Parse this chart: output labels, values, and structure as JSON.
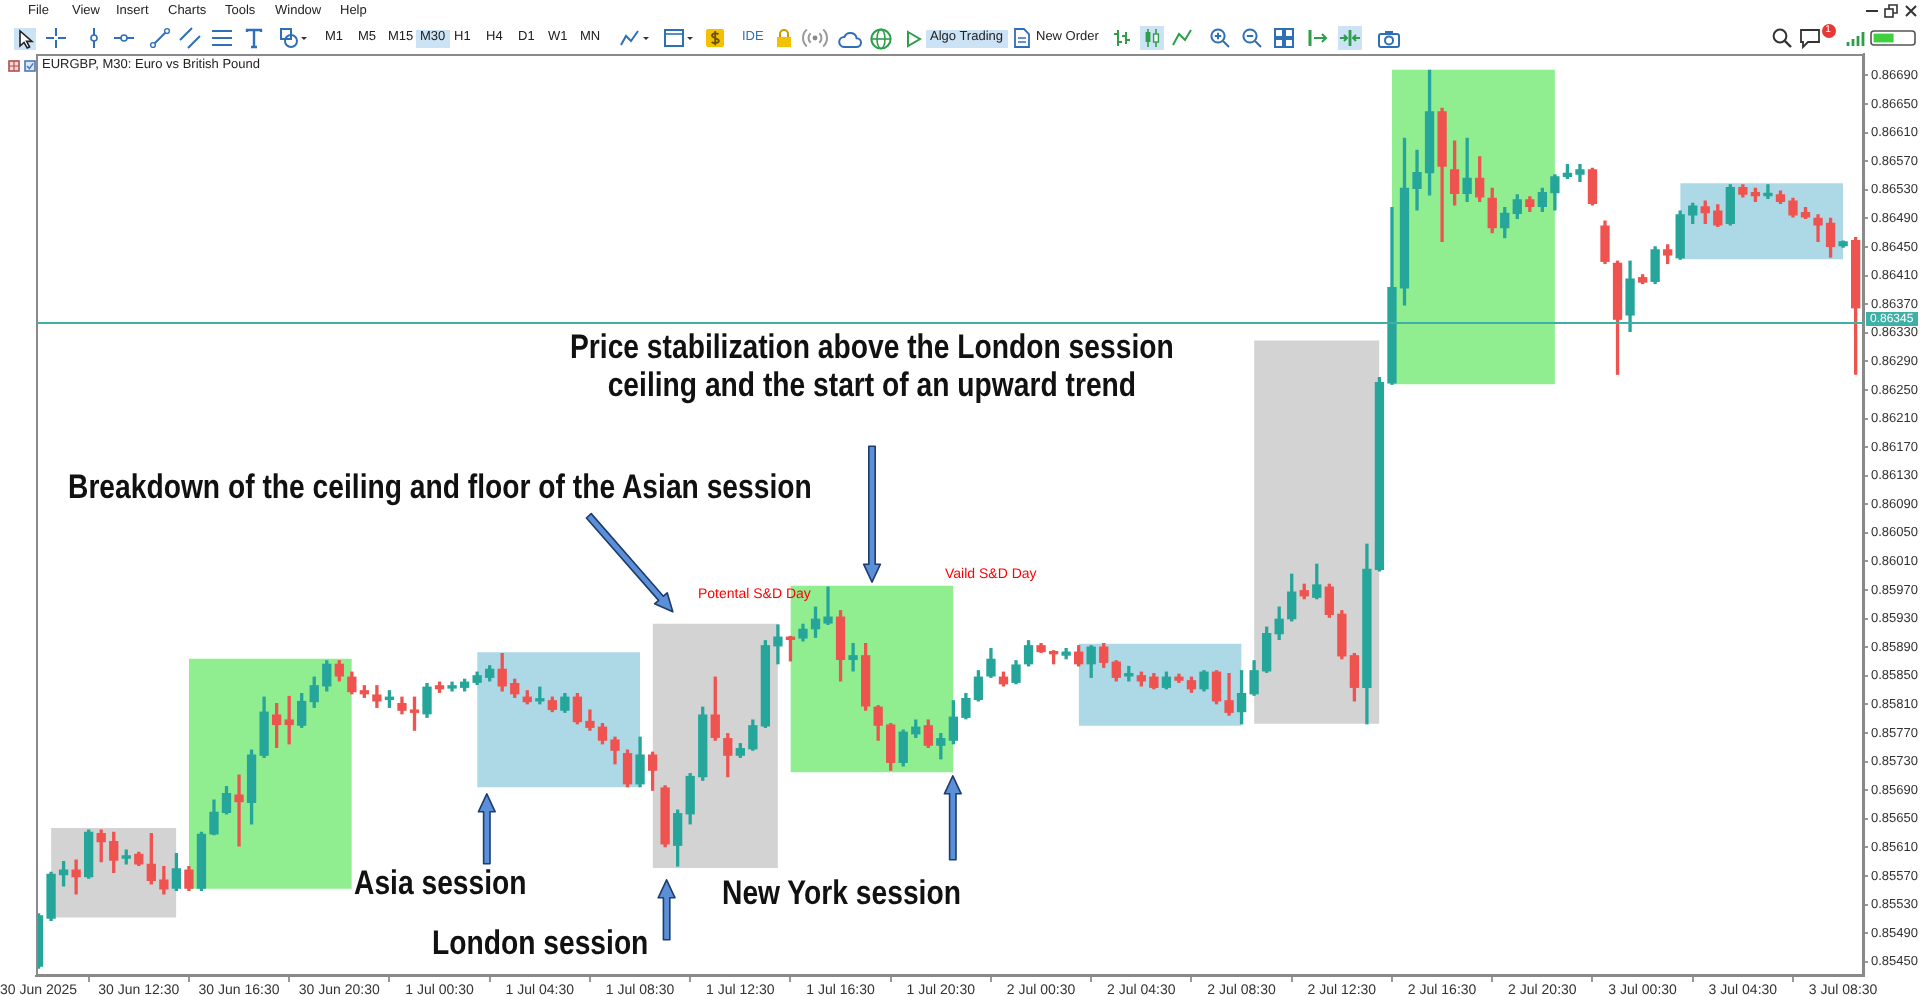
{
  "chart_data": {
    "type": "candlestick",
    "title": "EURGBP, M30: Euro vs British Pound",
    "x": [
      "2025-06-30T08:30",
      "2025-06-30T09:00",
      "2025-06-30T09:30",
      "2025-06-30T10:00",
      "2025-06-30T10:30",
      "2025-06-30T11:00",
      "2025-06-30T11:30",
      "2025-06-30T12:00",
      "2025-06-30T12:30",
      "2025-06-30T13:00",
      "2025-06-30T13:30",
      "2025-06-30T14:00",
      "2025-06-30T14:30",
      "2025-06-30T15:00",
      "2025-06-30T15:30",
      "2025-06-30T16:00",
      "2025-06-30T16:30",
      "2025-06-30T17:00",
      "2025-06-30T17:30",
      "2025-06-30T18:00",
      "2025-06-30T18:30",
      "2025-06-30T19:00",
      "2025-06-30T19:30",
      "2025-06-30T20:00",
      "2025-06-30T20:30",
      "2025-06-30T21:00",
      "2025-06-30T21:30",
      "2025-06-30T22:00",
      "2025-06-30T22:30",
      "2025-06-30T23:00",
      "2025-06-30T23:30",
      "2025-07-01T00:00",
      "2025-07-01T00:30",
      "2025-07-01T01:00",
      "2025-07-01T01:30",
      "2025-07-01T02:00",
      "2025-07-01T02:30",
      "2025-07-01T03:00",
      "2025-07-01T03:30",
      "2025-07-01T04:00",
      "2025-07-01T04:30",
      "2025-07-01T05:00",
      "2025-07-01T05:30",
      "2025-07-01T06:00",
      "2025-07-01T06:30",
      "2025-07-01T07:00",
      "2025-07-01T07:30",
      "2025-07-01T08:00",
      "2025-07-01T08:30",
      "2025-07-01T09:00",
      "2025-07-01T09:30",
      "2025-07-01T10:00",
      "2025-07-01T10:30",
      "2025-07-01T11:00",
      "2025-07-01T11:30",
      "2025-07-01T12:00",
      "2025-07-01T12:30",
      "2025-07-01T13:00",
      "2025-07-01T13:30",
      "2025-07-01T14:00",
      "2025-07-01T14:30",
      "2025-07-01T15:00",
      "2025-07-01T15:30",
      "2025-07-01T16:00",
      "2025-07-01T16:30",
      "2025-07-01T17:00",
      "2025-07-01T17:30",
      "2025-07-01T18:00",
      "2025-07-01T18:30",
      "2025-07-01T19:00",
      "2025-07-01T19:30",
      "2025-07-01T20:00",
      "2025-07-01T20:30",
      "2025-07-01T21:00",
      "2025-07-01T21:30",
      "2025-07-01T22:00",
      "2025-07-01T22:30",
      "2025-07-01T23:00",
      "2025-07-01T23:30",
      "2025-07-02T00:00",
      "2025-07-02T00:30",
      "2025-07-02T01:00",
      "2025-07-02T01:30",
      "2025-07-02T02:00",
      "2025-07-02T02:30",
      "2025-07-02T03:00",
      "2025-07-02T03:30",
      "2025-07-02T04:00",
      "2025-07-02T04:30",
      "2025-07-02T05:00",
      "2025-07-02T05:30",
      "2025-07-02T06:00",
      "2025-07-02T06:30",
      "2025-07-02T07:00",
      "2025-07-02T07:30",
      "2025-07-02T08:00",
      "2025-07-02T08:30",
      "2025-07-02T09:00",
      "2025-07-02T09:30",
      "2025-07-02T10:00",
      "2025-07-02T10:30",
      "2025-07-02T11:00",
      "2025-07-02T11:30",
      "2025-07-02T12:00",
      "2025-07-02T12:30",
      "2025-07-02T13:00",
      "2025-07-02T13:30",
      "2025-07-02T14:00",
      "2025-07-02T14:30",
      "2025-07-02T15:00",
      "2025-07-02T15:30",
      "2025-07-02T16:00",
      "2025-07-02T16:30",
      "2025-07-02T17:00",
      "2025-07-02T17:30",
      "2025-07-02T18:00",
      "2025-07-02T18:30",
      "2025-07-02T19:00",
      "2025-07-02T19:30",
      "2025-07-02T20:00",
      "2025-07-02T20:30",
      "2025-07-02T21:00",
      "2025-07-02T21:30",
      "2025-07-02T22:00",
      "2025-07-02T22:30",
      "2025-07-02T23:00",
      "2025-07-02T23:30",
      "2025-07-03T00:00",
      "2025-07-03T00:30",
      "2025-07-03T01:00",
      "2025-07-03T01:30",
      "2025-07-03T02:00",
      "2025-07-03T02:30",
      "2025-07-03T03:00",
      "2025-07-03T03:30",
      "2025-07-03T04:00",
      "2025-07-03T04:30",
      "2025-07-03T05:00",
      "2025-07-03T05:30",
      "2025-07-03T06:00",
      "2025-07-03T06:30",
      "2025-07-03T07:00",
      "2025-07-03T07:30",
      "2025-07-03T08:00",
      "2025-07-03T08:30",
      "2025-07-03T09:00"
    ],
    "ohlc": [
      [
        0.85444,
        0.85517,
        0.85441,
        0.85514
      ],
      [
        0.85511,
        0.85575,
        0.85508,
        0.85572
      ],
      [
        0.85572,
        0.8559,
        0.85556,
        0.85578
      ],
      [
        0.85578,
        0.85592,
        0.85545,
        0.85569
      ],
      [
        0.85569,
        0.85634,
        0.85567,
        0.85631
      ],
      [
        0.85629,
        0.85634,
        0.8559,
        0.85618
      ],
      [
        0.85618,
        0.85631,
        0.85575,
        0.85592
      ],
      [
        0.85595,
        0.85606,
        0.85587,
        0.85598
      ],
      [
        0.856,
        0.85603,
        0.85585,
        0.85587
      ],
      [
        0.85586,
        0.85629,
        0.85559,
        0.85564
      ],
      [
        0.85564,
        0.85583,
        0.85545,
        0.85552
      ],
      [
        0.85553,
        0.85601,
        0.8555,
        0.8558
      ],
      [
        0.85578,
        0.85583,
        0.8555,
        0.85553
      ],
      [
        0.85553,
        0.85631,
        0.8555,
        0.85628
      ],
      [
        0.85629,
        0.85676,
        0.85628,
        0.85659
      ],
      [
        0.85659,
        0.85695,
        0.85657,
        0.85685
      ],
      [
        0.85683,
        0.85711,
        0.85612,
        0.85674
      ],
      [
        0.85673,
        0.85746,
        0.85643,
        0.85739
      ],
      [
        0.85739,
        0.8582,
        0.85736,
        0.85799
      ],
      [
        0.85795,
        0.85811,
        0.8575,
        0.85782
      ],
      [
        0.85788,
        0.85821,
        0.85755,
        0.85782
      ],
      [
        0.85781,
        0.85825,
        0.85778,
        0.85814
      ],
      [
        0.85814,
        0.85848,
        0.85806,
        0.85836
      ],
      [
        0.85836,
        0.85871,
        0.85829,
        0.85866
      ],
      [
        0.85866,
        0.85871,
        0.85843,
        0.8585
      ],
      [
        0.85848,
        0.85855,
        0.85825,
        0.85828
      ],
      [
        0.85829,
        0.85836,
        0.8582,
        0.85825
      ],
      [
        0.85823,
        0.85836,
        0.85806,
        0.85815
      ],
      [
        0.85817,
        0.85829,
        0.85806,
        0.8582
      ],
      [
        0.85811,
        0.8582,
        0.85797,
        0.85802
      ],
      [
        0.85802,
        0.8582,
        0.85774,
        0.85799
      ],
      [
        0.85797,
        0.85839,
        0.85792,
        0.85834
      ],
      [
        0.85836,
        0.85841,
        0.85827,
        0.85832
      ],
      [
        0.85833,
        0.85841,
        0.85829,
        0.85836
      ],
      [
        0.85834,
        0.85845,
        0.85829,
        0.85841
      ],
      [
        0.85841,
        0.85855,
        0.85838,
        0.8585
      ],
      [
        0.85848,
        0.85864,
        0.85843,
        0.85859
      ],
      [
        0.85859,
        0.85881,
        0.85829,
        0.85836
      ],
      [
        0.85839,
        0.85845,
        0.8582,
        0.85825
      ],
      [
        0.8582,
        0.85829,
        0.85811,
        0.85814
      ],
      [
        0.85815,
        0.85834,
        0.85811,
        0.85817
      ],
      [
        0.85815,
        0.8582,
        0.858,
        0.85803
      ],
      [
        0.85802,
        0.85825,
        0.85799,
        0.8582
      ],
      [
        0.8582,
        0.85825,
        0.85783,
        0.85786
      ],
      [
        0.85786,
        0.85802,
        0.85774,
        0.85778
      ],
      [
        0.85778,
        0.85783,
        0.85755,
        0.8576
      ],
      [
        0.8576,
        0.85764,
        0.85727,
        0.85746
      ],
      [
        0.85741,
        0.85746,
        0.85695,
        0.85699
      ],
      [
        0.85699,
        0.85764,
        0.85695,
        0.85739
      ],
      [
        0.85739,
        0.85743,
        0.8569,
        0.85718
      ],
      [
        0.85693,
        0.85696,
        0.85611,
        0.85615
      ],
      [
        0.85613,
        0.85662,
        0.85584,
        0.85657
      ],
      [
        0.85657,
        0.85713,
        0.85643,
        0.85709
      ],
      [
        0.85709,
        0.85806,
        0.85704,
        0.85795
      ],
      [
        0.85795,
        0.85848,
        0.8576,
        0.85764
      ],
      [
        0.85762,
        0.85769,
        0.85709,
        0.85739
      ],
      [
        0.85739,
        0.85755,
        0.85736,
        0.85748
      ],
      [
        0.85748,
        0.85788,
        0.85746,
        0.8578
      ],
      [
        0.8578,
        0.85899,
        0.85778,
        0.85892
      ],
      [
        0.85892,
        0.85921,
        0.85867,
        0.85904
      ],
      [
        0.85904,
        0.85905,
        0.85871,
        0.85901
      ],
      [
        0.85903,
        0.85922,
        0.85899,
        0.85915
      ],
      [
        0.85916,
        0.85946,
        0.85904,
        0.85929
      ],
      [
        0.85924,
        0.85974,
        0.85922,
        0.85932
      ],
      [
        0.85932,
        0.85941,
        0.85843,
        0.85873
      ],
      [
        0.85873,
        0.85895,
        0.85857,
        0.85878
      ],
      [
        0.85878,
        0.85895,
        0.85802,
        0.85808
      ],
      [
        0.85806,
        0.85808,
        0.8576,
        0.85781
      ],
      [
        0.85781,
        0.85783,
        0.85718,
        0.85729
      ],
      [
        0.85729,
        0.85774,
        0.85724,
        0.85771
      ],
      [
        0.85769,
        0.85788,
        0.85764,
        0.85778
      ],
      [
        0.8578,
        0.85788,
        0.8575,
        0.85753
      ],
      [
        0.85753,
        0.85769,
        0.85734,
        0.85762
      ],
      [
        0.8576,
        0.85815,
        0.85755,
        0.85792
      ],
      [
        0.85792,
        0.85825,
        0.8579,
        0.85818
      ],
      [
        0.85817,
        0.85857,
        0.85815,
        0.85848
      ],
      [
        0.8585,
        0.85888,
        0.85848,
        0.85873
      ],
      [
        0.85848,
        0.85855,
        0.85836,
        0.85839
      ],
      [
        0.85841,
        0.85871,
        0.85839,
        0.85865
      ],
      [
        0.85867,
        0.85899,
        0.85864,
        0.85892
      ],
      [
        0.85892,
        0.85895,
        0.85883,
        0.85884
      ],
      [
        0.85883,
        0.85885,
        0.85867,
        0.85881
      ],
      [
        0.85879,
        0.85888,
        0.85874,
        0.85883
      ],
      [
        0.85883,
        0.85892,
        0.85864,
        0.85867
      ],
      [
        0.85867,
        0.85892,
        0.85848,
        0.8589
      ],
      [
        0.8589,
        0.85895,
        0.85862,
        0.85869
      ],
      [
        0.85869,
        0.85871,
        0.85843,
        0.85848
      ],
      [
        0.8585,
        0.85863,
        0.85843,
        0.85853
      ],
      [
        0.8585,
        0.85855,
        0.85836,
        0.85843
      ],
      [
        0.85848,
        0.85853,
        0.85832,
        0.85834
      ],
      [
        0.85834,
        0.85855,
        0.85832,
        0.85848
      ],
      [
        0.85848,
        0.85852,
        0.85841,
        0.85844
      ],
      [
        0.85843,
        0.85848,
        0.85827,
        0.85832
      ],
      [
        0.85832,
        0.85857,
        0.85829,
        0.85855
      ],
      [
        0.85855,
        0.85857,
        0.85811,
        0.85815
      ],
      [
        0.85815,
        0.85853,
        0.85795,
        0.85799
      ],
      [
        0.858,
        0.85857,
        0.85783,
        0.85825
      ],
      [
        0.85825,
        0.85871,
        0.85823,
        0.85857
      ],
      [
        0.85857,
        0.85918,
        0.85855,
        0.85909
      ],
      [
        0.85909,
        0.85946,
        0.85901,
        0.85929
      ],
      [
        0.8593,
        0.85992,
        0.85927,
        0.85967
      ],
      [
        0.85969,
        0.85978,
        0.85958,
        0.85962
      ],
      [
        0.8596,
        0.86006,
        0.85958,
        0.85977
      ],
      [
        0.85974,
        0.85978,
        0.85932,
        0.85936
      ],
      [
        0.85936,
        0.85941,
        0.85874,
        0.85878
      ],
      [
        0.85878,
        0.85881,
        0.85815,
        0.85834
      ],
      [
        0.85834,
        0.86034,
        0.85783,
        0.85999
      ],
      [
        0.85999,
        0.86267,
        0.85997,
        0.8626
      ],
      [
        0.8626,
        0.86505,
        0.86258,
        0.86393
      ],
      [
        0.86393,
        0.86602,
        0.86369,
        0.86532
      ],
      [
        0.86532,
        0.86585,
        0.86502,
        0.86554
      ],
      [
        0.86554,
        0.86697,
        0.86523,
        0.86639
      ],
      [
        0.86639,
        0.86644,
        0.86458,
        0.86563
      ],
      [
        0.86558,
        0.86598,
        0.86509,
        0.86525
      ],
      [
        0.86525,
        0.86602,
        0.86514,
        0.86546
      ],
      [
        0.86546,
        0.86576,
        0.86514,
        0.8652
      ],
      [
        0.86518,
        0.86532,
        0.8647,
        0.86477
      ],
      [
        0.86477,
        0.86505,
        0.86463,
        0.86497
      ],
      [
        0.86497,
        0.86523,
        0.8649,
        0.86516
      ],
      [
        0.86516,
        0.8652,
        0.865,
        0.86507
      ],
      [
        0.86507,
        0.86532,
        0.865,
        0.86526
      ],
      [
        0.86526,
        0.86551,
        0.86502,
        0.86548
      ],
      [
        0.86549,
        0.86565,
        0.86546,
        0.86553
      ],
      [
        0.86552,
        0.86565,
        0.86542,
        0.86558
      ],
      [
        0.86558,
        0.8656,
        0.86509,
        0.86511
      ],
      [
        0.86479,
        0.86486,
        0.86427,
        0.8643
      ],
      [
        0.86427,
        0.8643,
        0.86272,
        0.86349
      ],
      [
        0.86355,
        0.8643,
        0.86332,
        0.86405
      ],
      [
        0.86407,
        0.86411,
        0.86399,
        0.86401
      ],
      [
        0.86402,
        0.8645,
        0.86399,
        0.86446
      ],
      [
        0.86446,
        0.86453,
        0.86427,
        0.86439
      ],
      [
        0.86435,
        0.865,
        0.86433,
        0.86495
      ],
      [
        0.86495,
        0.86511,
        0.86483,
        0.86507
      ],
      [
        0.86506,
        0.86514,
        0.86483,
        0.86498
      ],
      [
        0.865,
        0.86509,
        0.86479,
        0.86481
      ],
      [
        0.86483,
        0.86537,
        0.86481,
        0.86533
      ],
      [
        0.86533,
        0.86537,
        0.8652,
        0.86524
      ],
      [
        0.86526,
        0.86532,
        0.86514,
        0.86522
      ],
      [
        0.86522,
        0.86537,
        0.86518,
        0.86524
      ],
      [
        0.86523,
        0.86528,
        0.86511,
        0.86514
      ],
      [
        0.86514,
        0.86518,
        0.86492,
        0.86495
      ],
      [
        0.86498,
        0.86505,
        0.8649,
        0.86492
      ],
      [
        0.8649,
        0.86495,
        0.86458,
        0.86481
      ],
      [
        0.86483,
        0.8649,
        0.86436,
        0.86451
      ],
      [
        0.86452,
        0.86458,
        0.8645,
        0.86457
      ],
      [
        0.86459,
        0.86463,
        0.86272,
        0.86365
      ]
    ],
    "colors": [
      "#26a69a",
      "#26a69a",
      "#26a69a",
      "#ef5350",
      "#26a69a",
      "#ef5350",
      "#ef5350",
      "#26a69a",
      "#ef5350",
      "#ef5350",
      "#ef5350",
      "#26a69a",
      "#ef5350",
      "#26a69a",
      "#26a69a",
      "#26a69a",
      "#ef5350",
      "#26a69a",
      "#26a69a",
      "#ef5350",
      "#ef5350",
      "#26a69a",
      "#26a69a",
      "#26a69a",
      "#ef5350",
      "#ef5350",
      "#ef5350",
      "#ef5350",
      "#26a69a",
      "#ef5350",
      "#ef5350",
      "#26a69a",
      "#ef5350",
      "#26a69a",
      "#26a69a",
      "#26a69a",
      "#26a69a",
      "#ef5350",
      "#ef5350",
      "#ef5350",
      "#26a69a",
      "#ef5350",
      "#26a69a",
      "#ef5350",
      "#ef5350",
      "#ef5350",
      "#ef5350",
      "#ef5350",
      "#26a69a",
      "#ef5350",
      "#ef5350",
      "#26a69a",
      "#26a69a",
      "#26a69a",
      "#ef5350",
      "#ef5350",
      "#26a69a",
      "#26a69a",
      "#26a69a",
      "#26a69a",
      "#ef5350",
      "#26a69a",
      "#26a69a",
      "#26a69a",
      "#ef5350",
      "#26a69a",
      "#ef5350",
      "#ef5350",
      "#ef5350",
      "#26a69a",
      "#26a69a",
      "#ef5350",
      "#26a69a",
      "#26a69a",
      "#26a69a",
      "#26a69a",
      "#26a69a",
      "#ef5350",
      "#26a69a",
      "#26a69a",
      "#ef5350",
      "#ef5350",
      "#26a69a",
      "#ef5350",
      "#26a69a",
      "#ef5350",
      "#ef5350",
      "#26a69a",
      "#ef5350",
      "#ef5350",
      "#26a69a",
      "#ef5350",
      "#ef5350",
      "#26a69a",
      "#ef5350",
      "#ef5350",
      "#26a69a",
      "#26a69a",
      "#26a69a",
      "#26a69a",
      "#26a69a",
      "#ef5350",
      "#26a69a",
      "#ef5350",
      "#ef5350",
      "#ef5350",
      "#26a69a",
      "#26a69a",
      "#26a69a",
      "#26a69a",
      "#26a69a",
      "#26a69a",
      "#ef5350",
      "#ef5350",
      "#26a69a",
      "#ef5350",
      "#ef5350",
      "#26a69a",
      "#26a69a",
      "#ef5350",
      "#26a69a",
      "#26a69a",
      "#26a69a",
      "#26a69a",
      "#ef5350",
      "#ef5350",
      "#ef5350",
      "#26a69a",
      "#ef5350",
      "#26a69a",
      "#ef5350",
      "#26a69a",
      "#26a69a",
      "#ef5350",
      "#ef5350",
      "#26a69a",
      "#ef5350",
      "#ef5350",
      "#26a69a",
      "#ef5350",
      "#ef5350",
      "#ef5350",
      "#ef5350",
      "#ef5350",
      "#26a69a",
      "#ef5350"
    ],
    "series": [
      {
        "type": "area",
        "color": "#d3d3d3",
        "x": [
          "2025-06-30T09:00",
          "2025-06-30T14:00"
        ],
        "values": [
          null,
          null
        ],
        "lower": [
          0.85512,
          0.85512
        ],
        "upper": [
          0.85637,
          0.85637
        ]
      },
      {
        "type": "area",
        "color": "#90ee90",
        "x": [
          "2025-06-30T14:30",
          "2025-06-30T21:00"
        ],
        "values": [
          null,
          null
        ],
        "lower": [
          0.85552,
          0.85552
        ],
        "upper": [
          0.85874,
          0.85874
        ]
      },
      {
        "type": "area",
        "color": "#add8e6",
        "x": [
          "2025-07-01T02:00",
          "2025-07-01T08:30"
        ],
        "values": [
          null,
          null
        ],
        "lower": [
          0.85694,
          0.85694
        ],
        "upper": [
          0.85883,
          0.85883
        ]
      },
      {
        "type": "area",
        "color": "#d3d3d3",
        "x": [
          "2025-07-01T09:00",
          "2025-07-01T14:00"
        ],
        "values": [
          null,
          null
        ],
        "lower": [
          0.85581,
          0.85581
        ],
        "upper": [
          0.85923,
          0.85923
        ]
      },
      {
        "type": "area",
        "color": "#90ee90",
        "x": [
          "2025-07-01T14:30",
          "2025-07-01T21:00"
        ],
        "values": [
          null,
          null
        ],
        "lower": [
          0.85715,
          0.85715
        ],
        "upper": [
          0.85976,
          0.85976
        ]
      },
      {
        "type": "area",
        "color": "#add8e6",
        "x": [
          "2025-07-02T02:00",
          "2025-07-02T08:30"
        ],
        "values": [
          null,
          null
        ],
        "lower": [
          0.8578,
          0.8578
        ],
        "upper": [
          0.85895,
          0.85895
        ]
      },
      {
        "type": "area",
        "color": "#d3d3d3",
        "x": [
          "2025-07-02T09:00",
          "2025-07-02T14:00"
        ],
        "values": [
          null,
          null
        ],
        "lower": [
          0.85783,
          0.85783
        ],
        "upper": [
          0.86319,
          0.86319
        ]
      },
      {
        "type": "area",
        "color": "#90ee90",
        "x": [
          "2025-07-02T14:30",
          "2025-07-02T21:00"
        ],
        "values": [
          null,
          null
        ],
        "lower": [
          0.86258,
          0.86258
        ],
        "upper": [
          0.86698,
          0.86698
        ]
      },
      {
        "type": "area",
        "color": "#add8e6",
        "x": [
          "2025-07-03T02:00",
          "2025-07-03T08:30"
        ],
        "values": [
          null,
          null
        ],
        "lower": [
          0.86433,
          0.86433
        ],
        "upper": [
          0.86539,
          0.86539
        ]
      }
    ],
    "xlim": [
      "2025-06-30T08:25",
      "2025-07-03T09:20"
    ],
    "xticks": [
      {
        "value": "2025-06-30T08:30",
        "label": "30 Jun 2025"
      },
      {
        "value": "2025-06-30T12:30",
        "label": "30 Jun 12:30"
      },
      {
        "value": "2025-06-30T16:30",
        "label": "30 Jun 16:30"
      },
      {
        "value": "2025-06-30T20:30",
        "label": "30 Jun 20:30"
      },
      {
        "value": "2025-07-01T00:30",
        "label": "1 Jul 00:30"
      },
      {
        "value": "2025-07-01T04:30",
        "label": "1 Jul 04:30"
      },
      {
        "value": "2025-07-01T08:30",
        "label": "1 Jul 08:30"
      },
      {
        "value": "2025-07-01T12:30",
        "label": "1 Jul 12:30"
      },
      {
        "value": "2025-07-01T16:30",
        "label": "1 Jul 16:30"
      },
      {
        "value": "2025-07-01T20:30",
        "label": "1 Jul 20:30"
      },
      {
        "value": "2025-07-02T00:30",
        "label": "2 Jul 00:30"
      },
      {
        "value": "2025-07-02T04:30",
        "label": "2 Jul 04:30"
      },
      {
        "value": "2025-07-02T08:30",
        "label": "2 Jul 08:30"
      },
      {
        "value": "2025-07-02T12:30",
        "label": "2 Jul 12:30"
      },
      {
        "value": "2025-07-02T16:30",
        "label": "2 Jul 16:30"
      },
      {
        "value": "2025-07-02T20:30",
        "label": "2 Jul 20:30"
      },
      {
        "value": "2025-07-03T00:30",
        "label": "3 Jul 00:30"
      },
      {
        "value": "2025-07-03T04:30",
        "label": "3 Jul 04:30"
      },
      {
        "value": "2025-07-03T08:30",
        "label": "3 Jul 08:30"
      }
    ],
    "ylim": [
      0.8543,
      0.8672
    ],
    "yticks": [
      {
        "value": 0.8545,
        "label": "0.85450"
      },
      {
        "value": 0.8549,
        "label": "0.85490"
      },
      {
        "value": 0.8553,
        "label": "0.85530"
      },
      {
        "value": 0.8557,
        "label": "0.85570"
      },
      {
        "value": 0.8561,
        "label": "0.85610"
      },
      {
        "value": 0.8565,
        "label": "0.85650"
      },
      {
        "value": 0.8569,
        "label": "0.85690"
      },
      {
        "value": 0.8573,
        "label": "0.85730"
      },
      {
        "value": 0.8577,
        "label": "0.85770"
      },
      {
        "value": 0.8581,
        "label": "0.85810"
      },
      {
        "value": 0.8585,
        "label": "0.85850"
      },
      {
        "value": 0.8589,
        "label": "0.85890"
      },
      {
        "value": 0.8593,
        "label": "0.85930"
      },
      {
        "value": 0.8597,
        "label": "0.85970"
      },
      {
        "value": 0.8601,
        "label": "0.86010"
      },
      {
        "value": 0.8605,
        "label": "0.86050"
      },
      {
        "value": 0.8609,
        "label": "0.86090"
      },
      {
        "value": 0.8613,
        "label": "0.86130"
      },
      {
        "value": 0.8617,
        "label": "0.86170"
      },
      {
        "value": 0.8621,
        "label": "0.86210"
      },
      {
        "value": 0.8625,
        "label": "0.86250"
      },
      {
        "value": 0.8629,
        "label": "0.86290"
      },
      {
        "value": 0.8633,
        "label": "0.86330"
      },
      {
        "value": 0.8637,
        "label": "0.86370"
      },
      {
        "value": 0.8641,
        "label": "0.86410"
      },
      {
        "value": 0.8645,
        "label": "0.86450"
      },
      {
        "value": 0.8649,
        "label": "0.86490"
      },
      {
        "value": 0.8653,
        "label": "0.86530"
      },
      {
        "value": 0.8657,
        "label": "0.86570"
      },
      {
        "value": 0.8661,
        "label": "0.86610"
      },
      {
        "value": 0.8665,
        "label": "0.86650"
      },
      {
        "value": 0.8669,
        "label": "0.86690"
      }
    ],
    "ref_lines": [
      {
        "axis": "y",
        "value": 0.86345,
        "label": "0.86345",
        "color": "#3fb0a5"
      }
    ],
    "annotations": [
      "Price stabilization above the London session\nceiling and the start of an upward trend",
      "Breakdown of the ceiling and floor of the Asian session",
      "Asia session",
      "London session",
      "New York session",
      "Potental S&D Day",
      "Vaild S&D Day",
      "File",
      "View",
      "Insert",
      "Charts",
      "Tools",
      "Window",
      "Help",
      "M1",
      "M5",
      "M15",
      "M30",
      "H1",
      "H4",
      "D1",
      "W1",
      "MN",
      "IDE",
      "Algo Trading",
      "New Order",
      "1"
    ]
  }
}
